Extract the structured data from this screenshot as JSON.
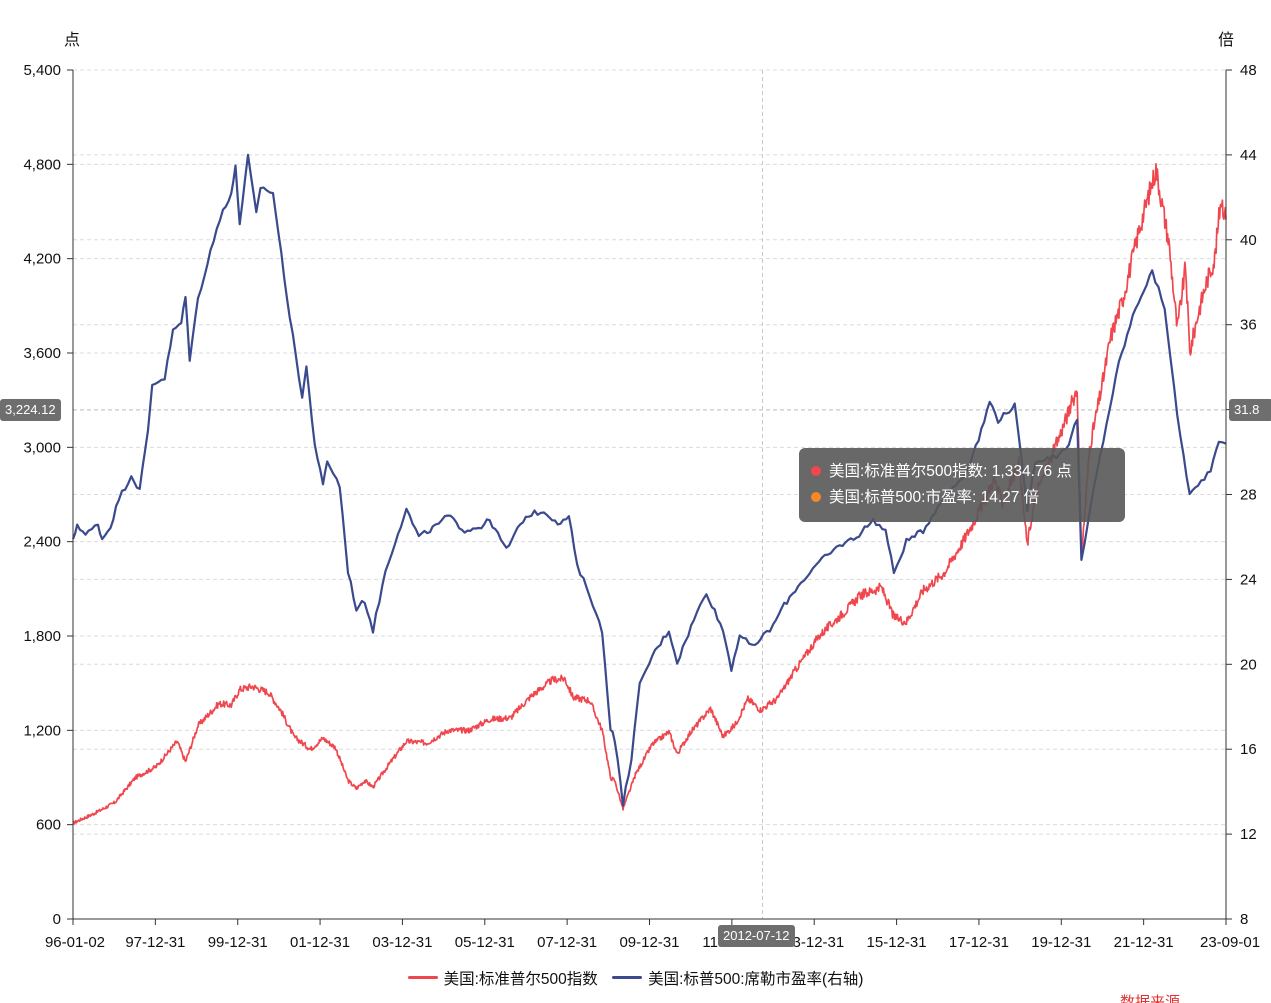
{
  "chart_data": {
    "type": "line",
    "left_axis": {
      "unit_label": "点",
      "ylim": [
        0,
        5400
      ],
      "ticks": [
        "0",
        "600",
        "1,200",
        "1,800",
        "2,400",
        "3,000",
        "3,600",
        "4,200",
        "4,800",
        "5,400"
      ]
    },
    "right_axis": {
      "unit_label": "倍",
      "ylim": [
        8,
        48
      ],
      "ticks": [
        "8",
        "12",
        "16",
        "20",
        "24",
        "28",
        "32",
        "36",
        "40",
        "44",
        "48"
      ]
    },
    "x_ticks": [
      "96-01-02",
      "97-12-31",
      "99-12-31",
      "01-12-31",
      "03-12-31",
      "05-12-31",
      "07-12-31",
      "09-12-31",
      "11-12-31",
      "13-12-31",
      "15-12-31",
      "17-12-31",
      "19-12-31",
      "21-12-31",
      "23-09-01"
    ],
    "grid": true,
    "legend_position": "bottom",
    "series": [
      {
        "name": "美国:标准普尔500指数",
        "axis": "left",
        "color": "#f0474f",
        "points": [
          [
            1996.0,
            610
          ],
          [
            1996.5,
            670
          ],
          [
            1997.0,
            740
          ],
          [
            1997.5,
            900
          ],
          [
            1998.0,
            970
          ],
          [
            1998.5,
            1130
          ],
          [
            1998.7,
            1000
          ],
          [
            1999.0,
            1230
          ],
          [
            1999.5,
            1370
          ],
          [
            1999.8,
            1360
          ],
          [
            2000.0,
            1460
          ],
          [
            2000.3,
            1480
          ],
          [
            2000.7,
            1440
          ],
          [
            2001.0,
            1320
          ],
          [
            2001.3,
            1160
          ],
          [
            2001.7,
            1080
          ],
          [
            2002.0,
            1150
          ],
          [
            2002.3,
            1090
          ],
          [
            2002.6,
            880
          ],
          [
            2002.8,
            830
          ],
          [
            2003.0,
            880
          ],
          [
            2003.2,
            840
          ],
          [
            2003.6,
            990
          ],
          [
            2004.0,
            1130
          ],
          [
            2004.5,
            1120
          ],
          [
            2005.0,
            1200
          ],
          [
            2005.5,
            1200
          ],
          [
            2006.0,
            1270
          ],
          [
            2006.5,
            1280
          ],
          [
            2007.0,
            1420
          ],
          [
            2007.5,
            1520
          ],
          [
            2007.8,
            1530
          ],
          [
            2008.0,
            1410
          ],
          [
            2008.4,
            1390
          ],
          [
            2008.7,
            1200
          ],
          [
            2008.9,
            900
          ],
          [
            2009.0,
            880
          ],
          [
            2009.2,
            700
          ],
          [
            2009.5,
            920
          ],
          [
            2009.9,
            1110
          ],
          [
            2010.3,
            1190
          ],
          [
            2010.5,
            1050
          ],
          [
            2010.8,
            1180
          ],
          [
            2011.3,
            1340
          ],
          [
            2011.6,
            1160
          ],
          [
            2011.9,
            1240
          ],
          [
            2012.2,
            1400
          ],
          [
            2012.5,
            1330
          ],
          [
            2012.9,
            1400
          ],
          [
            2013.3,
            1570
          ],
          [
            2013.9,
            1800
          ],
          [
            2014.5,
            1950
          ],
          [
            2014.9,
            2060
          ],
          [
            2015.4,
            2110
          ],
          [
            2015.7,
            1920
          ],
          [
            2016.0,
            1890
          ],
          [
            2016.4,
            2090
          ],
          [
            2016.9,
            2200
          ],
          [
            2017.4,
            2420
          ],
          [
            2017.9,
            2670
          ],
          [
            2018.1,
            2800
          ],
          [
            2018.3,
            2650
          ],
          [
            2018.7,
            2900
          ],
          [
            2018.9,
            2380
          ],
          [
            2019.1,
            2700
          ],
          [
            2019.5,
            2950
          ],
          [
            2019.9,
            3230
          ],
          [
            2020.1,
            3380
          ],
          [
            2020.2,
            2300
          ],
          [
            2020.4,
            3000
          ],
          [
            2020.7,
            3400
          ],
          [
            2020.9,
            3700
          ],
          [
            2021.2,
            3950
          ],
          [
            2021.6,
            4400
          ],
          [
            2021.99,
            4770
          ],
          [
            2022.3,
            4300
          ],
          [
            2022.5,
            3750
          ],
          [
            2022.7,
            4150
          ],
          [
            2022.8,
            3600
          ],
          [
            2023.0,
            3850
          ],
          [
            2023.2,
            4050
          ],
          [
            2023.4,
            4200
          ],
          [
            2023.55,
            4590
          ],
          [
            2023.67,
            4450
          ]
        ]
      },
      {
        "name": "美国:标普500:席勒市盈率(右轴)",
        "axis": "right",
        "color": "#3a4a8c",
        "points": [
          [
            1996.0,
            25.8
          ],
          [
            1996.1,
            26.6
          ],
          [
            1996.3,
            26.1
          ],
          [
            1996.6,
            26.6
          ],
          [
            1996.7,
            25.9
          ],
          [
            1996.9,
            26.5
          ],
          [
            1997.1,
            27.8
          ],
          [
            1997.4,
            28.9
          ],
          [
            1997.6,
            28.2
          ],
          [
            1997.8,
            31.0
          ],
          [
            1997.9,
            33.2
          ],
          [
            1998.2,
            33.5
          ],
          [
            1998.4,
            35.7
          ],
          [
            1998.6,
            36.1
          ],
          [
            1998.7,
            37.3
          ],
          [
            1998.8,
            34.4
          ],
          [
            1999.0,
            37.2
          ],
          [
            1999.3,
            39.5
          ],
          [
            1999.6,
            41.4
          ],
          [
            1999.8,
            42.2
          ],
          [
            1999.9,
            43.4
          ],
          [
            2000.0,
            40.8
          ],
          [
            2000.2,
            43.9
          ],
          [
            2000.4,
            41.2
          ],
          [
            2000.5,
            42.5
          ],
          [
            2000.8,
            42.2
          ],
          [
            2001.0,
            39.3
          ],
          [
            2001.2,
            36.4
          ],
          [
            2001.5,
            32.6
          ],
          [
            2001.6,
            34.0
          ],
          [
            2001.8,
            30.4
          ],
          [
            2002.0,
            28.4
          ],
          [
            2002.1,
            29.6
          ],
          [
            2002.4,
            28.4
          ],
          [
            2002.6,
            24.4
          ],
          [
            2002.8,
            22.6
          ],
          [
            2003.0,
            23.0
          ],
          [
            2003.2,
            21.6
          ],
          [
            2003.5,
            24.4
          ],
          [
            2003.8,
            26.2
          ],
          [
            2004.0,
            27.3
          ],
          [
            2004.3,
            26.0
          ],
          [
            2004.7,
            26.5
          ],
          [
            2005.0,
            27.0
          ],
          [
            2005.4,
            26.3
          ],
          [
            2005.8,
            26.5
          ],
          [
            2006.0,
            26.8
          ],
          [
            2006.4,
            25.4
          ],
          [
            2006.8,
            26.8
          ],
          [
            2007.0,
            27.1
          ],
          [
            2007.3,
            27.2
          ],
          [
            2007.7,
            26.6
          ],
          [
            2007.9,
            27.0
          ],
          [
            2008.1,
            24.6
          ],
          [
            2008.4,
            23.3
          ],
          [
            2008.7,
            21.5
          ],
          [
            2008.9,
            17.0
          ],
          [
            2009.0,
            16.5
          ],
          [
            2009.2,
            13.4
          ],
          [
            2009.4,
            15.6
          ],
          [
            2009.6,
            19.0
          ],
          [
            2009.9,
            20.4
          ],
          [
            2010.3,
            21.6
          ],
          [
            2010.5,
            20.1
          ],
          [
            2010.9,
            22.1
          ],
          [
            2011.2,
            23.4
          ],
          [
            2011.6,
            21.6
          ],
          [
            2011.8,
            19.8
          ],
          [
            2012.0,
            21.4
          ],
          [
            2012.3,
            20.8
          ],
          [
            2012.5,
            21.2
          ],
          [
            2012.8,
            21.8
          ],
          [
            2013.0,
            22.6
          ],
          [
            2013.4,
            23.7
          ],
          [
            2013.9,
            24.8
          ],
          [
            2014.4,
            25.6
          ],
          [
            2014.8,
            26.0
          ],
          [
            2015.2,
            26.8
          ],
          [
            2015.5,
            26.3
          ],
          [
            2015.7,
            24.3
          ],
          [
            2016.0,
            25.8
          ],
          [
            2016.4,
            26.3
          ],
          [
            2016.9,
            27.9
          ],
          [
            2017.4,
            28.9
          ],
          [
            2017.8,
            31.0
          ],
          [
            2018.0,
            32.4
          ],
          [
            2018.2,
            31.5
          ],
          [
            2018.6,
            32.2
          ],
          [
            2018.9,
            27.3
          ],
          [
            2019.1,
            29.6
          ],
          [
            2019.6,
            29.8
          ],
          [
            2019.9,
            30.4
          ],
          [
            2020.1,
            31.6
          ],
          [
            2020.2,
            24.8
          ],
          [
            2020.5,
            28.3
          ],
          [
            2020.8,
            31.3
          ],
          [
            2021.1,
            34.2
          ],
          [
            2021.5,
            36.8
          ],
          [
            2021.9,
            38.5
          ],
          [
            2022.2,
            36.8
          ],
          [
            2022.5,
            31.7
          ],
          [
            2022.8,
            28.0
          ],
          [
            2023.0,
            28.4
          ],
          [
            2023.3,
            29.2
          ],
          [
            2023.5,
            30.6
          ],
          [
            2023.67,
            30.4
          ]
        ]
      }
    ],
    "pointer": {
      "x_label": "2012-07-12",
      "left_value_label": "3,224.12",
      "right_value_label": "31.8"
    },
    "tooltip": {
      "rows": [
        {
          "label": "美国:标准普尔500指数: 1,334.76  点",
          "color": "#f0474f"
        },
        {
          "label": "美国:标普500:市盈率: 14.27  倍",
          "color": "#f5892a"
        }
      ]
    },
    "source_text": "数据来源"
  }
}
